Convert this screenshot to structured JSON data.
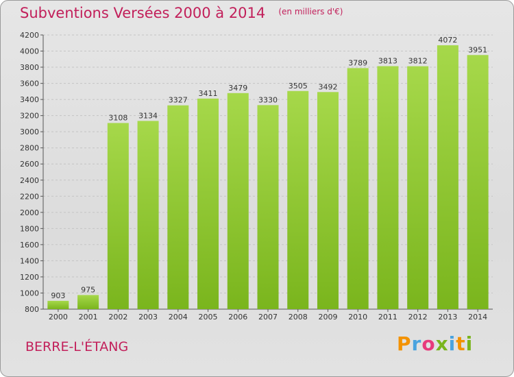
{
  "header": {
    "title": "Subventions Versées 2000 à 2014",
    "subtitle": "(en milliers d'€)"
  },
  "place": "BERRE-L'ÉTANG",
  "logo": {
    "letters": [
      "P",
      "r",
      "o",
      "x",
      "i",
      "t",
      "i"
    ],
    "colors": [
      "#f39200",
      "#4aa3df",
      "#e73b7c",
      "#7ab51d",
      "#4aa3df",
      "#f39200",
      "#7ab51d"
    ]
  },
  "chart_data": {
    "type": "bar",
    "title": "Subventions Versées 2000 à 2014",
    "subtitle": "(en milliers d'€)",
    "categories": [
      "2000",
      "2001",
      "2002",
      "2003",
      "2004",
      "2005",
      "2006",
      "2007",
      "2008",
      "2009",
      "2010",
      "2011",
      "2012",
      "2013",
      "2014"
    ],
    "values": [
      903,
      975,
      3108,
      3134,
      3327,
      3411,
      3479,
      3330,
      3505,
      3492,
      3789,
      3813,
      3812,
      4072,
      3951
    ],
    "ylim": [
      800,
      4200
    ],
    "yticks": [
      800,
      1000,
      1200,
      1400,
      1600,
      1800,
      2000,
      2200,
      2400,
      2600,
      2800,
      3000,
      3200,
      3400,
      3600,
      3800,
      4000,
      4200
    ],
    "grid": true,
    "bar_color": "#7ab51d",
    "bar_color_top": "#a6d84a"
  }
}
